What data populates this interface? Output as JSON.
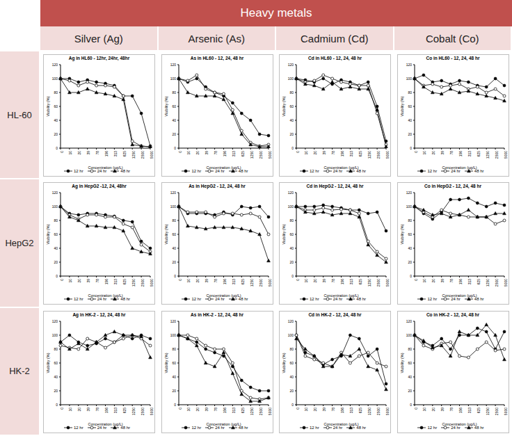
{
  "header": {
    "title": "Heavy metals",
    "columns": [
      "Silver (Ag)",
      "Arsenic (As)",
      "Cadmium (Cd)",
      "Cobalt (Co)"
    ],
    "rows": [
      "HL-60",
      "HepG2",
      "HK-2"
    ]
  },
  "chart_data": [
    {
      "type": "line",
      "title": "Ag in HL60 - 12hr, 24hr, 48hr",
      "x_label": "Concentration (ug/L)",
      "y_label": "Viability (%)",
      "categories": [
        "0",
        "10",
        "20",
        "39",
        "78",
        "156",
        "313",
        "625",
        "1250",
        "2500",
        "5000"
      ],
      "ylim": [
        0,
        120
      ],
      "yticks": [
        0,
        20,
        40,
        60,
        80,
        100,
        120
      ],
      "grid": false,
      "legend": "bottom",
      "series": [
        {
          "name": "12 hr",
          "color": "#000000",
          "marker": "circle",
          "values": [
            100,
            100,
            95,
            98,
            95,
            93,
            90,
            75,
            75,
            50,
            3
          ]
        },
        {
          "name": "24 hr",
          "color": "#000000",
          "marker": "circle_open",
          "values": [
            100,
            97,
            90,
            95,
            90,
            90,
            88,
            75,
            10,
            3,
            2
          ]
        },
        {
          "name": "48 hr",
          "color": "#000000",
          "marker": "triangle",
          "values": [
            100,
            80,
            80,
            85,
            80,
            78,
            75,
            70,
            5,
            3,
            2
          ]
        }
      ]
    },
    {
      "type": "line",
      "title": "As in HL60 - 12, 24, 48 hr",
      "x_label": "Concentration (ug/L)",
      "y_label": "Viability (%)",
      "categories": [
        "0",
        "10",
        "20",
        "39",
        "78",
        "156",
        "313",
        "625",
        "1250",
        "2500",
        "5000"
      ],
      "ylim": [
        0,
        120
      ],
      "yticks": [
        0,
        20,
        40,
        60,
        80,
        100,
        120
      ],
      "grid": false,
      "legend": "bottom",
      "series": [
        {
          "name": "12 hr",
          "color": "#000000",
          "marker": "circle",
          "values": [
            100,
            95,
            100,
            88,
            80,
            75,
            65,
            50,
            40,
            20,
            18
          ]
        },
        {
          "name": "24 hr",
          "color": "#000000",
          "marker": "circle_open",
          "values": [
            100,
            97,
            105,
            85,
            80,
            78,
            55,
            25,
            8,
            3,
            5
          ]
        },
        {
          "name": "48 hr",
          "color": "#000000",
          "marker": "triangle",
          "values": [
            100,
            80,
            75,
            75,
            75,
            70,
            50,
            20,
            5,
            2,
            2
          ]
        }
      ]
    },
    {
      "type": "line",
      "title": "Cd in HL60 - 12, 24, 48 hr",
      "x_label": "Concentration (ug/L)",
      "y_label": "Viability (%)",
      "categories": [
        "0",
        "10",
        "20",
        "39",
        "78",
        "156",
        "313",
        "625",
        "1250",
        "2500",
        "5000"
      ],
      "ylim": [
        0,
        120
      ],
      "yticks": [
        0,
        20,
        40,
        60,
        80,
        100,
        120
      ],
      "grid": false,
      "legend": "bottom",
      "series": [
        {
          "name": "12 hr",
          "color": "#000000",
          "marker": "circle",
          "values": [
            100,
            98,
            95,
            100,
            92,
            98,
            95,
            90,
            95,
            60,
            10
          ]
        },
        {
          "name": "24 hr",
          "color": "#000000",
          "marker": "circle_open",
          "values": [
            100,
            95,
            97,
            105,
            100,
            95,
            92,
            90,
            90,
            50,
            5
          ]
        },
        {
          "name": "48 hr",
          "color": "#000000",
          "marker": "triangle",
          "values": [
            100,
            92,
            90,
            85,
            95,
            85,
            88,
            85,
            85,
            55,
            2
          ]
        }
      ]
    },
    {
      "type": "line",
      "title": "Co in HL60 - 12, 24, 48 hr",
      "x_label": "Concentration (ug/L)",
      "y_label": "Viability (%)",
      "categories": [
        "0",
        "10",
        "20",
        "39",
        "78",
        "156",
        "313",
        "625",
        "1250",
        "2500",
        "5000"
      ],
      "ylim": [
        0,
        120
      ],
      "yticks": [
        0,
        20,
        40,
        60,
        80,
        100,
        120
      ],
      "grid": false,
      "legend": "bottom",
      "series": [
        {
          "name": "12 hr",
          "color": "#000000",
          "marker": "circle",
          "values": [
            100,
            105,
            95,
            97,
            92,
            97,
            95,
            90,
            88,
            100,
            90
          ]
        },
        {
          "name": "24 hr",
          "color": "#000000",
          "marker": "circle_open",
          "values": [
            100,
            90,
            92,
            88,
            90,
            92,
            85,
            88,
            80,
            85,
            75
          ]
        },
        {
          "name": "48 hr",
          "color": "#000000",
          "marker": "triangle",
          "values": [
            100,
            88,
            80,
            78,
            85,
            80,
            82,
            78,
            75,
            72,
            68
          ]
        }
      ]
    },
    {
      "type": "line",
      "title": "Ag in HepG2 -12, 24, 48hr",
      "x_label": "Concentration (ug/L)",
      "y_label": "Viability (%)",
      "categories": [
        "0",
        "10",
        "20",
        "39",
        "78",
        "156",
        "313",
        "625",
        "1250",
        "2500",
        "5000"
      ],
      "ylim": [
        0,
        120
      ],
      "yticks": [
        0,
        20,
        40,
        60,
        80,
        100,
        120
      ],
      "grid": false,
      "legend": "bottom",
      "series": [
        {
          "name": "12 hr",
          "color": "#000000",
          "marker": "circle",
          "values": [
            100,
            90,
            88,
            90,
            90,
            88,
            86,
            80,
            78,
            50,
            40
          ]
        },
        {
          "name": "24 hr",
          "color": "#000000",
          "marker": "circle_open",
          "values": [
            100,
            88,
            82,
            88,
            88,
            85,
            85,
            75,
            70,
            45,
            35
          ]
        },
        {
          "name": "48 hr",
          "color": "#000000",
          "marker": "triangle",
          "values": [
            100,
            85,
            80,
            72,
            72,
            70,
            70,
            65,
            40,
            35,
            32
          ]
        }
      ]
    },
    {
      "type": "line",
      "title": "As in HepG2 - 12, 24, 48 hr",
      "x_label": "Concentration (ug/L)",
      "y_label": "Viability (%)",
      "categories": [
        "0",
        "10",
        "20",
        "39",
        "78",
        "156",
        "313",
        "625",
        "1250",
        "2500",
        "5000"
      ],
      "ylim": [
        0,
        120
      ],
      "yticks": [
        0,
        20,
        40,
        60,
        80,
        100,
        120
      ],
      "grid": false,
      "legend": "bottom",
      "series": [
        {
          "name": "12 hr",
          "color": "#000000",
          "marker": "circle",
          "values": [
            100,
            90,
            90,
            90,
            88,
            92,
            88,
            100,
            98,
            100,
            85
          ]
        },
        {
          "name": "24 hr",
          "color": "#000000",
          "marker": "circle_open",
          "values": [
            100,
            92,
            92,
            92,
            85,
            90,
            90,
            88,
            90,
            85,
            60
          ]
        },
        {
          "name": "48 hr",
          "color": "#000000",
          "marker": "triangle",
          "values": [
            100,
            72,
            70,
            68,
            70,
            70,
            70,
            68,
            65,
            60,
            22
          ]
        }
      ]
    },
    {
      "type": "line",
      "title": "Cd in HepG2 - 12, 24, 48 hr",
      "x_label": "Concentration (ug/L)",
      "y_label": "Viability (%)",
      "categories": [
        "0",
        "10",
        "20",
        "39",
        "78",
        "156",
        "313",
        "625",
        "1250",
        "2500",
        "5000"
      ],
      "ylim": [
        0,
        120
      ],
      "yticks": [
        0,
        20,
        40,
        60,
        80,
        100,
        120
      ],
      "grid": false,
      "legend": "bottom",
      "series": [
        {
          "name": "12 hr",
          "color": "#000000",
          "marker": "circle",
          "values": [
            100,
            100,
            100,
            102,
            100,
            98,
            95,
            95,
            90,
            92,
            65
          ]
        },
        {
          "name": "24 hr",
          "color": "#000000",
          "marker": "circle_open",
          "values": [
            100,
            95,
            95,
            98,
            95,
            96,
            95,
            90,
            50,
            35,
            25
          ]
        },
        {
          "name": "48 hr",
          "color": "#000000",
          "marker": "triangle",
          "values": [
            100,
            92,
            90,
            92,
            88,
            90,
            90,
            85,
            45,
            30,
            20
          ]
        }
      ]
    },
    {
      "type": "line",
      "title": "Co in HepG2 - 12, 24, 48 hr",
      "x_label": "Concentration (ug/L)",
      "y_label": "Viability (%)",
      "categories": [
        "0",
        "10",
        "20",
        "39",
        "78",
        "156",
        "313",
        "625",
        "1250",
        "2500",
        "5000"
      ],
      "ylim": [
        0,
        120
      ],
      "yticks": [
        0,
        20,
        40,
        60,
        80,
        100,
        120
      ],
      "grid": false,
      "legend": "bottom",
      "series": [
        {
          "name": "12 hr",
          "color": "#000000",
          "marker": "circle",
          "values": [
            100,
            90,
            82,
            92,
            110,
            110,
            112,
            105,
            100,
            105,
            102
          ]
        },
        {
          "name": "24 hr",
          "color": "#000000",
          "marker": "circle_open",
          "values": [
            100,
            92,
            85,
            95,
            90,
            88,
            85,
            85,
            85,
            75,
            80
          ]
        },
        {
          "name": "48 hr",
          "color": "#000000",
          "marker": "triangle",
          "values": [
            100,
            95,
            88,
            90,
            85,
            88,
            95,
            85,
            85,
            90,
            90
          ]
        }
      ]
    },
    {
      "type": "line",
      "title": "Ag in HK-2 - 12, 24, 48 hr",
      "x_label": "Concentration (ug/L)",
      "y_label": "Viability (%)",
      "categories": [
        "0",
        "10",
        "20",
        "39",
        "78",
        "156",
        "313",
        "625",
        "1250",
        "2500",
        "5000"
      ],
      "ylim": [
        0,
        120
      ],
      "yticks": [
        0,
        20,
        40,
        60,
        80,
        100,
        120
      ],
      "grid": false,
      "legend": "bottom",
      "series": [
        {
          "name": "12 hr",
          "color": "#000000",
          "marker": "circle",
          "values": [
            90,
            100,
            90,
            85,
            88,
            95,
            90,
            100,
            95,
            100,
            95
          ]
        },
        {
          "name": "24 hr",
          "color": "#000000",
          "marker": "circle_open",
          "values": [
            85,
            82,
            80,
            95,
            90,
            82,
            90,
            95,
            100,
            95,
            85
          ]
        },
        {
          "name": "48 hr",
          "color": "#000000",
          "marker": "triangle",
          "values": [
            90,
            80,
            88,
            80,
            90,
            100,
            105,
            100,
            100,
            98,
            68
          ]
        }
      ]
    },
    {
      "type": "line",
      "title": "As in HK-2 - 12, 24, 48 hr",
      "x_label": "Concentration (ug/L)",
      "y_label": "Viability (%)",
      "categories": [
        "0",
        "10",
        "20",
        "39",
        "78",
        "156",
        "313",
        "625",
        "1250",
        "2500",
        "5000"
      ],
      "ylim": [
        0,
        120
      ],
      "yticks": [
        0,
        20,
        40,
        60,
        80,
        100,
        120
      ],
      "grid": false,
      "legend": "bottom",
      "series": [
        {
          "name": "12 hr",
          "color": "#000000",
          "marker": "circle",
          "values": [
            100,
            95,
            90,
            80,
            75,
            70,
            55,
            35,
            25,
            20,
            20
          ]
        },
        {
          "name": "24 hr",
          "color": "#000000",
          "marker": "circle_open",
          "values": [
            100,
            100,
            95,
            85,
            80,
            80,
            60,
            20,
            10,
            8,
            10
          ]
        },
        {
          "name": "48 hr",
          "color": "#000000",
          "marker": "triangle",
          "values": [
            100,
            95,
            85,
            60,
            55,
            75,
            45,
            15,
            5,
            5,
            10
          ]
        }
      ]
    },
    {
      "type": "line",
      "title": "Cd in HK-2 - 12, 24, 48 hr",
      "x_label": "Concentration (ug/L)",
      "y_label": "Viability (%)",
      "categories": [
        "0",
        "10",
        "20",
        "39",
        "78",
        "156",
        "313",
        "625",
        "1250",
        "2500",
        "5000"
      ],
      "ylim": [
        0,
        120
      ],
      "yticks": [
        0,
        20,
        40,
        60,
        80,
        100,
        120
      ],
      "grid": false,
      "legend": "bottom",
      "series": [
        {
          "name": "12 hr",
          "color": "#000000",
          "marker": "circle",
          "values": [
            100,
            75,
            70,
            58,
            65,
            70,
            100,
            95,
            70,
            80,
            30
          ]
        },
        {
          "name": "24 hr",
          "color": "#000000",
          "marker": "circle_open",
          "values": [
            100,
            70,
            65,
            60,
            55,
            75,
            60,
            70,
            75,
            60,
            55
          ]
        },
        {
          "name": "48 hr",
          "color": "#000000",
          "marker": "triangle",
          "values": [
            95,
            80,
            70,
            55,
            55,
            72,
            70,
            80,
            55,
            50,
            22
          ]
        }
      ]
    },
    {
      "type": "line",
      "title": "Co in HK-2 - 12, 24, 48 hr",
      "x_label": "Concentration (ug/L)",
      "y_label": "Viability (%)",
      "categories": [
        "0",
        "10",
        "20",
        "39",
        "78",
        "156",
        "313",
        "625",
        "1250",
        "2500",
        "5000"
      ],
      "ylim": [
        0,
        120
      ],
      "yticks": [
        0,
        20,
        40,
        60,
        80,
        100,
        120
      ],
      "grid": false,
      "legend": "bottom",
      "series": [
        {
          "name": "12 hr",
          "color": "#000000",
          "marker": "circle",
          "values": [
            100,
            90,
            85,
            95,
            80,
            100,
            100,
            110,
            105,
            80,
            105
          ]
        },
        {
          "name": "24 hr",
          "color": "#000000",
          "marker": "circle_open",
          "values": [
            100,
            85,
            80,
            88,
            90,
            70,
            68,
            80,
            90,
            78,
            80
          ]
        },
        {
          "name": "48 hr",
          "color": "#000000",
          "marker": "triangle",
          "values": [
            100,
            92,
            82,
            85,
            70,
            105,
            100,
            100,
            115,
            100,
            65
          ]
        }
      ]
    }
  ]
}
